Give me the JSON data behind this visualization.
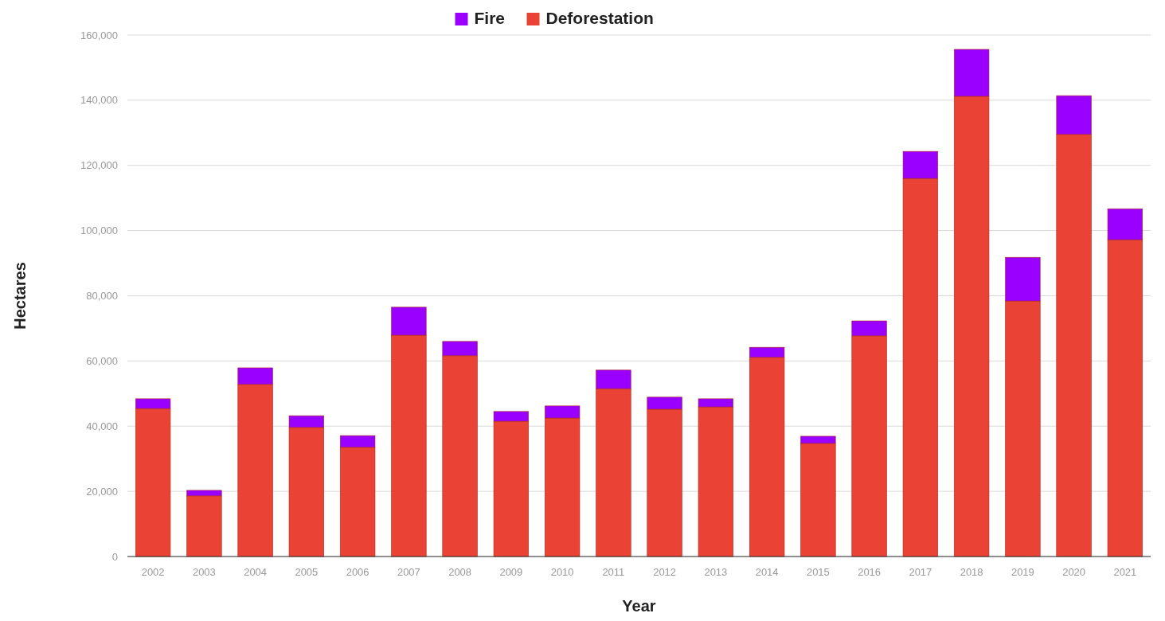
{
  "chart_data": {
    "type": "bar",
    "stacked": true,
    "xlabel": "Year",
    "ylabel": "Hectares",
    "categories": [
      "2002",
      "2003",
      "2004",
      "2005",
      "2006",
      "2007",
      "2008",
      "2009",
      "2010",
      "2011",
      "2012",
      "2013",
      "2014",
      "2015",
      "2016",
      "2017",
      "2018",
      "2019",
      "2020",
      "2021"
    ],
    "series": [
      {
        "name": "Deforestation",
        "color": "#ea4335",
        "values": [
          45400,
          18600,
          52800,
          39600,
          33500,
          67900,
          61600,
          41500,
          42500,
          51500,
          45200,
          45900,
          61100,
          34700,
          67700,
          116000,
          141200,
          78400,
          129500,
          97200
        ]
      },
      {
        "name": "Fire",
        "color": "#9900ff",
        "values": [
          3000,
          1700,
          5100,
          3600,
          3600,
          8600,
          4400,
          3000,
          3700,
          5700,
          3700,
          2500,
          3100,
          2200,
          4600,
          8300,
          14400,
          13400,
          11900,
          9500
        ]
      }
    ],
    "ylim": [
      0,
      160000
    ],
    "yticks": [
      {
        "value": 0,
        "label": "0"
      },
      {
        "value": 20000,
        "label": "20,000"
      },
      {
        "value": 40000,
        "label": "40,000"
      },
      {
        "value": 60000,
        "label": "60,000"
      },
      {
        "value": 80000,
        "label": "80,000"
      },
      {
        "value": 100000,
        "label": "100,000"
      },
      {
        "value": 120000,
        "label": "120,000"
      },
      {
        "value": 140000,
        "label": "140,000"
      },
      {
        "value": 160000,
        "label": "160,000"
      }
    ],
    "grid": "y",
    "legend": "top"
  }
}
